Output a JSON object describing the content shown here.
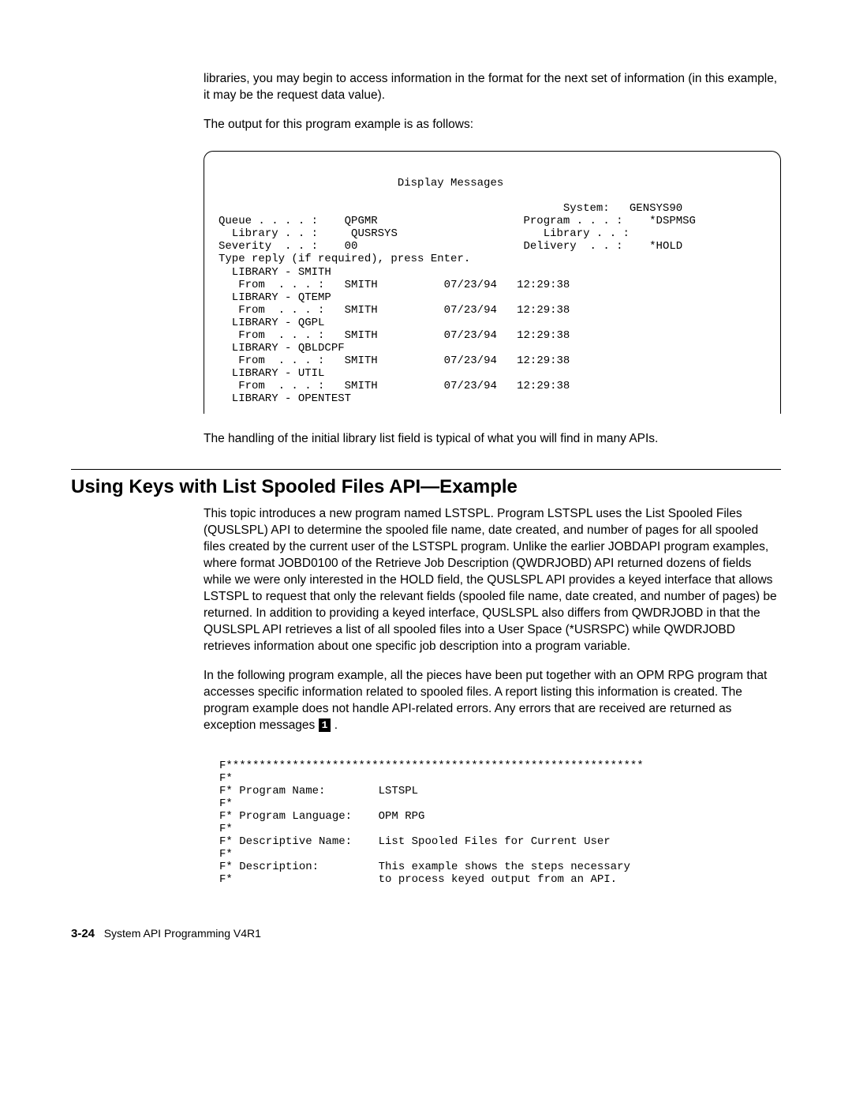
{
  "intro": {
    "frag1": "libraries, you may begin to access information in the format for the next set of information (in this example, it may be the request data value).",
    "frag2": "The output for this program example is as follows:"
  },
  "terminal": {
    "title": "Display Messages",
    "hdr": {
      "queue_label": "Queue . . . . :",
      "queue_val": "QPGMR",
      "library1_label": "Library . . :",
      "library1_val": "QUSRSYS",
      "severity_label": "Severity  . . :",
      "severity_val": "00",
      "system_label": "System:",
      "system_val": "GENSYS90",
      "program_label": "Program . . . :",
      "program_val": "*DSPMSG",
      "library2_label": "Library . . :",
      "library2_val": "",
      "delivery_label": "Delivery  . . :",
      "delivery_val": "*HOLD"
    },
    "instr": "Type reply (if required), press Enter.",
    "entries": [
      {
        "lib": "SMITH",
        "from": "SMITH",
        "date": "07/23/94",
        "time": "12:29:38"
      },
      {
        "lib": "QTEMP",
        "from": "SMITH",
        "date": "07/23/94",
        "time": "12:29:38"
      },
      {
        "lib": "QGPL",
        "from": "SMITH",
        "date": "07/23/94",
        "time": "12:29:38"
      },
      {
        "lib": "QBLDCPF",
        "from": "SMITH",
        "date": "07/23/94",
        "time": "12:29:38"
      },
      {
        "lib": "UTIL",
        "from": "SMITH",
        "date": "07/23/94",
        "time": "12:29:38"
      }
    ],
    "lastlib": "OPENTEST"
  },
  "afterbox": "The handling of the initial library list field is typical of what you will find in many APIs.",
  "section_title": "Using Keys with List Spooled Files API—Example",
  "para1": "This topic introduces a new program named LSTSPL.  Program LSTSPL uses the List Spooled Files (QUSLSPL) API to determine the spooled file name, date created, and number of pages for all spooled files created by the current user of the LSTSPL program.  Unlike the earlier JOBDAPI program examples, where format JOBD0100 of the Retrieve Job Description (QWDRJOBD) API returned dozens of fields while we were only interested in the HOLD field, the QUSLSPL API provides a keyed interface that allows LSTSPL to request that only the relevant fields (spooled file name, date created, and number of pages) be returned.  In addition to providing a keyed interface, QUSLSPL also differs from QWDRJOBD in that the QUSLSPL API retrieves a list of all spooled files into a User Space (*USRSPC) while QWDRJOBD retrieves information about one specific job description into a program variable.",
  "para2a": "In the following program example, all the pieces have been put together with an OPM RPG program that accesses specific information related to spooled files.  A report listing this information is created.  The program example does not handle API-related errors.  Any errors that are received are returned as exception messages ",
  "para2b": " .",
  "callout": "1",
  "code": {
    "l01": "F***************************************************************",
    "l02": "F*",
    "l03": "F* Program Name:        LSTSPL",
    "l04": "F*",
    "l05": "F* Program Language:    OPM RPG",
    "l06": "F*",
    "l07": "F* Descriptive Name:    List Spooled Files for Current User",
    "l08": "F*",
    "l09": "F* Description:         This example shows the steps necessary",
    "l10": "F*                      to process keyed output from an API."
  },
  "footer": {
    "pagenum": "3-24",
    "title": "System API Programming V4R1"
  }
}
